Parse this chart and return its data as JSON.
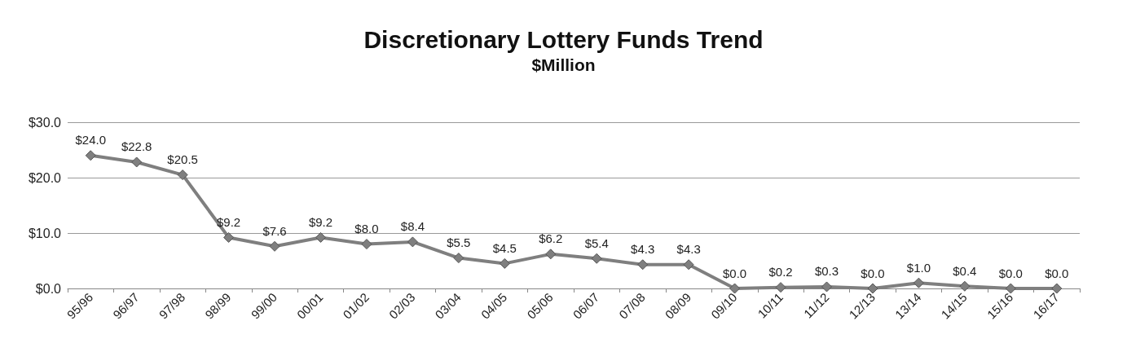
{
  "chart_data": {
    "type": "line",
    "title": "Discretionary Lottery Funds Trend",
    "subtitle": "$Million",
    "categories": [
      "95/96",
      "96/97",
      "97/98",
      "98/99",
      "99/00",
      "00/01",
      "01/02",
      "02/03",
      "03/04",
      "04/05",
      "05/06",
      "06/07",
      "07/08",
      "08/09",
      "09/10",
      "10/11",
      "11/12",
      "12/13",
      "13/14",
      "14/15",
      "15/16",
      "16/17"
    ],
    "series": [
      {
        "color": "#7f7f7f",
        "values": [
          24.0,
          22.8,
          20.5,
          9.2,
          7.6,
          9.2,
          8.0,
          8.4,
          5.5,
          4.5,
          6.2,
          5.4,
          4.3,
          4.3,
          0.0,
          0.2,
          0.3,
          0.0,
          1.0,
          0.4,
          0.0,
          0.0
        ],
        "value_labels": [
          "$24.0",
          "$22.8",
          "$20.5",
          "$9.2",
          "$7.6",
          "$9.2",
          "$8.0",
          "$8.4",
          "$5.5",
          "$4.5",
          "$6.2",
          "$5.4",
          "$4.3",
          "$4.3",
          "$0.0",
          "$0.2",
          "$0.3",
          "$0.0",
          "$1.0",
          "$0.4",
          "$0.0",
          "$0.0"
        ]
      }
    ],
    "ylim": [
      0,
      30
    ],
    "yticks": [
      {
        "value": 0,
        "label": "$0.0"
      },
      {
        "value": 10,
        "label": "$10.0"
      },
      {
        "value": 20,
        "label": "$20.0"
      },
      {
        "value": 30,
        "label": "$30.0"
      }
    ],
    "grid": "y",
    "marker": "diamond",
    "line_style": "solid"
  }
}
